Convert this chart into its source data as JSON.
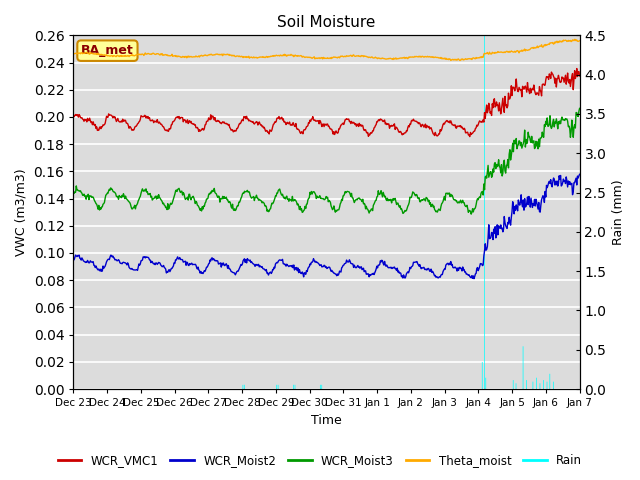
{
  "title": "Soil Moisture",
  "ylabel_left": "VWC (m3/m3)",
  "ylabel_right": "Rain (mm)",
  "xlabel": "Time",
  "annotation_label": "BA_met",
  "ylim_left": [
    0.0,
    0.26
  ],
  "ylim_right": [
    0.0,
    4.5
  ],
  "yticks_left": [
    0.0,
    0.02,
    0.04,
    0.06,
    0.08,
    0.1,
    0.12,
    0.14,
    0.16,
    0.18,
    0.2,
    0.22,
    0.24,
    0.26
  ],
  "yticks_right": [
    0.0,
    0.5,
    1.0,
    1.5,
    2.0,
    2.5,
    3.0,
    3.5,
    4.0,
    4.5
  ],
  "background_color": "#dcdcdc",
  "grid_color": "#ffffff",
  "legend_colors": [
    "#cc0000",
    "#0000cc",
    "#00aa00",
    "#ffaa00",
    "#00ffff"
  ],
  "legend_entries": [
    "WCR_VMC1",
    "WCR_Moist2",
    "WCR_Moist3",
    "Theta_moist",
    "Rain"
  ],
  "xtick_labels": [
    "Dec 23",
    "Dec 24",
    "Dec 25",
    "Dec 26",
    "Dec 27",
    "Dec 28",
    "Dec 29",
    "Dec 30",
    "Dec 31",
    "Jan 1",
    "Jan 2",
    "Jan 3",
    "Jan 4",
    "Jan 5",
    "Jan 6",
    "Jan 7"
  ],
  "n_points": 720,
  "jump_day": 12.15,
  "total_days": 15
}
